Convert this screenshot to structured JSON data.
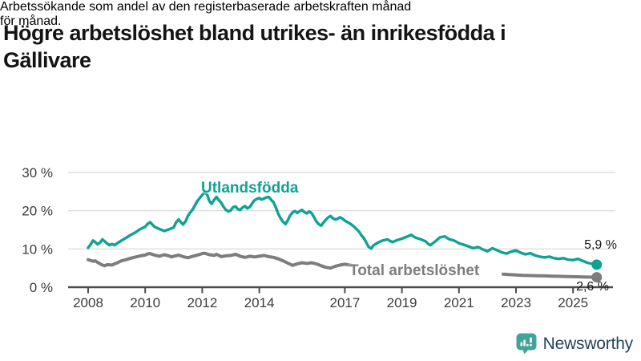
{
  "header": {
    "title_line1": "Högre arbetslöshet bland utrikes- än inrikesfödda i",
    "title_line2": "Gällivare",
    "subtitle_line1": "Arbetssökande som andel av den registerbaserade arbetskraften månad",
    "subtitle_line2": "för månad."
  },
  "footer": {
    "brand_name": "Newsworthy"
  },
  "colors": {
    "teal": "#0FA294",
    "gray": "#7D7D7D",
    "grid": "#DEDEDE",
    "axis": "#4D4D4D",
    "tick_text": "#3B3B3B",
    "end_label_text": "#191919",
    "brand_text": "#24455E",
    "brand_icon": "#42A39A"
  },
  "chart_data": {
    "type": "line",
    "title": "Högre arbetslöshet bland utrikes- än inrikesfödda i Gällivare",
    "subtitle": "Arbetssökande som andel av den registerbaserade arbetskraften månad för månad.",
    "unit": "%",
    "legend_position": "inline-labels",
    "x_axis": {
      "ticks": [
        2008,
        2010,
        2012,
        2014,
        2017,
        2019,
        2021,
        2023,
        2025
      ],
      "tick_labels": [
        "2008",
        "2010",
        "2012",
        "2014",
        "2017",
        "2019",
        "2021",
        "2023",
        "2025"
      ],
      "domain": [
        2008,
        2025.9
      ]
    },
    "y_axis": {
      "ticks": [
        0,
        10,
        20,
        30
      ],
      "tick_labels": [
        "0 %",
        "10 %",
        "20 %",
        "30 %"
      ],
      "domain": [
        0,
        30
      ],
      "grid": true
    },
    "series": [
      {
        "name": "Utlandsfödda",
        "color": "#0FA294",
        "end_label": "5,9 %",
        "end_value": 5.9,
        "segments": [
          [
            [
              2008.0,
              10.3
            ],
            [
              2008.08,
              11.1
            ],
            [
              2008.17,
              12.2
            ],
            [
              2008.25,
              11.8
            ],
            [
              2008.33,
              11.2
            ],
            [
              2008.42,
              11.7
            ],
            [
              2008.5,
              12.5
            ],
            [
              2008.58,
              12.0
            ],
            [
              2008.67,
              11.4
            ],
            [
              2008.75,
              11.0
            ],
            [
              2008.83,
              11.3
            ],
            [
              2008.92,
              11.0
            ],
            [
              2009.0,
              11.4
            ],
            [
              2009.17,
              12.2
            ],
            [
              2009.33,
              12.9
            ],
            [
              2009.5,
              13.7
            ],
            [
              2009.67,
              14.4
            ],
            [
              2009.83,
              15.2
            ],
            [
              2010.0,
              15.8
            ],
            [
              2010.08,
              16.5
            ],
            [
              2010.17,
              17.0
            ],
            [
              2010.25,
              16.4
            ],
            [
              2010.33,
              15.8
            ],
            [
              2010.5,
              15.2
            ],
            [
              2010.67,
              14.7
            ],
            [
              2010.83,
              15.1
            ],
            [
              2011.0,
              15.6
            ],
            [
              2011.08,
              16.9
            ],
            [
              2011.17,
              17.7
            ],
            [
              2011.25,
              17.0
            ],
            [
              2011.33,
              16.4
            ],
            [
              2011.42,
              17.3
            ],
            [
              2011.5,
              18.7
            ],
            [
              2011.58,
              19.5
            ],
            [
              2011.67,
              20.4
            ],
            [
              2011.75,
              21.5
            ],
            [
              2011.83,
              22.5
            ],
            [
              2011.92,
              23.4
            ],
            [
              2012.0,
              24.1
            ],
            [
              2012.08,
              24.8
            ],
            [
              2012.17,
              24.2
            ],
            [
              2012.25,
              22.5
            ],
            [
              2012.33,
              21.8
            ],
            [
              2012.42,
              22.9
            ],
            [
              2012.5,
              23.6
            ],
            [
              2012.58,
              22.8
            ],
            [
              2012.67,
              22.0
            ],
            [
              2012.75,
              21.0
            ],
            [
              2012.83,
              20.2
            ],
            [
              2012.92,
              19.8
            ],
            [
              2013.0,
              20.1
            ],
            [
              2013.08,
              20.9
            ],
            [
              2013.17,
              21.1
            ],
            [
              2013.25,
              20.4
            ],
            [
              2013.33,
              20.2
            ],
            [
              2013.42,
              20.9
            ],
            [
              2013.5,
              21.2
            ],
            [
              2013.58,
              20.6
            ],
            [
              2013.67,
              21.0
            ],
            [
              2013.75,
              21.9
            ],
            [
              2013.83,
              22.7
            ],
            [
              2013.92,
              23.1
            ],
            [
              2014.0,
              23.3
            ],
            [
              2014.08,
              22.9
            ],
            [
              2014.17,
              23.2
            ],
            [
              2014.25,
              23.5
            ],
            [
              2014.33,
              23.6
            ],
            [
              2014.42,
              22.8
            ],
            [
              2014.5,
              22.2
            ],
            [
              2014.58,
              20.9
            ],
            [
              2014.67,
              19.1
            ],
            [
              2014.75,
              18.0
            ],
            [
              2014.83,
              17.1
            ],
            [
              2014.92,
              16.5
            ],
            [
              2015.0,
              17.5
            ],
            [
              2015.08,
              18.7
            ],
            [
              2015.17,
              19.6
            ],
            [
              2015.25,
              19.9
            ],
            [
              2015.33,
              19.4
            ],
            [
              2015.42,
              19.9
            ],
            [
              2015.5,
              20.2
            ],
            [
              2015.58,
              19.6
            ],
            [
              2015.67,
              19.3
            ],
            [
              2015.75,
              19.8
            ],
            [
              2015.83,
              19.4
            ],
            [
              2015.92,
              18.3
            ],
            [
              2016.0,
              17.2
            ],
            [
              2016.08,
              16.5
            ],
            [
              2016.17,
              16.1
            ],
            [
              2016.25,
              16.9
            ],
            [
              2016.33,
              17.6
            ],
            [
              2016.42,
              18.3
            ],
            [
              2016.5,
              18.6
            ],
            [
              2016.58,
              18.0
            ],
            [
              2016.67,
              17.7
            ],
            [
              2016.75,
              17.9
            ],
            [
              2016.83,
              18.3
            ],
            [
              2016.92,
              17.9
            ],
            [
              2017.0,
              17.4
            ],
            [
              2017.17,
              16.7
            ],
            [
              2017.33,
              15.8
            ],
            [
              2017.5,
              14.5
            ],
            [
              2017.58,
              13.6
            ],
            [
              2017.67,
              12.8
            ],
            [
              2017.75,
              11.7
            ],
            [
              2017.83,
              10.6
            ],
            [
              2017.92,
              10.1
            ],
            [
              2018.0,
              10.9
            ],
            [
              2018.17,
              11.7
            ],
            [
              2018.33,
              12.2
            ],
            [
              2018.5,
              12.5
            ],
            [
              2018.58,
              12.1
            ],
            [
              2018.67,
              11.8
            ],
            [
              2018.83,
              12.3
            ],
            [
              2019.0,
              12.7
            ],
            [
              2019.17,
              13.2
            ],
            [
              2019.33,
              13.7
            ],
            [
              2019.42,
              13.2
            ],
            [
              2019.5,
              12.9
            ],
            [
              2019.67,
              12.5
            ],
            [
              2019.83,
              12.0
            ],
            [
              2019.92,
              11.3
            ],
            [
              2020.0,
              11.0
            ],
            [
              2020.17,
              12.0
            ],
            [
              2020.33,
              13.0
            ],
            [
              2020.5,
              13.3
            ],
            [
              2020.58,
              12.9
            ],
            [
              2020.67,
              12.5
            ],
            [
              2020.83,
              12.2
            ],
            [
              2021.0,
              11.5
            ],
            [
              2021.17,
              11.1
            ],
            [
              2021.33,
              10.7
            ],
            [
              2021.5,
              10.2
            ],
            [
              2021.67,
              10.5
            ],
            [
              2021.83,
              9.9
            ],
            [
              2022.0,
              9.4
            ],
            [
              2022.17,
              10.2
            ],
            [
              2022.33,
              9.7
            ],
            [
              2022.5,
              9.1
            ],
            [
              2022.67,
              8.8
            ],
            [
              2022.83,
              9.3
            ],
            [
              2023.0,
              9.6
            ],
            [
              2023.17,
              9.0
            ],
            [
              2023.33,
              8.6
            ],
            [
              2023.5,
              8.9
            ],
            [
              2023.67,
              8.3
            ],
            [
              2023.83,
              8.0
            ],
            [
              2024.0,
              7.8
            ],
            [
              2024.17,
              8.0
            ],
            [
              2024.33,
              7.6
            ],
            [
              2024.5,
              7.4
            ],
            [
              2024.67,
              7.6
            ],
            [
              2024.83,
              7.2
            ],
            [
              2025.0,
              7.1
            ],
            [
              2025.17,
              7.4
            ],
            [
              2025.33,
              6.9
            ],
            [
              2025.5,
              6.4
            ],
            [
              2025.67,
              6.1
            ],
            [
              2025.83,
              5.9
            ]
          ]
        ]
      },
      {
        "name": "Total arbetslöshet",
        "color": "#7D7D7D",
        "end_label": "2,6 %",
        "end_value": 2.6,
        "segments": [
          [
            [
              2008.0,
              7.2
            ],
            [
              2008.08,
              7.0
            ],
            [
              2008.17,
              6.8
            ],
            [
              2008.25,
              6.9
            ],
            [
              2008.33,
              6.5
            ],
            [
              2008.42,
              6.1
            ],
            [
              2008.5,
              5.8
            ],
            [
              2008.58,
              5.6
            ],
            [
              2008.67,
              5.9
            ],
            [
              2008.83,
              5.8
            ],
            [
              2008.92,
              6.1
            ],
            [
              2009.0,
              6.3
            ],
            [
              2009.17,
              6.9
            ],
            [
              2009.33,
              7.2
            ],
            [
              2009.5,
              7.6
            ],
            [
              2009.67,
              7.9
            ],
            [
              2009.83,
              8.2
            ],
            [
              2010.0,
              8.4
            ],
            [
              2010.08,
              8.7
            ],
            [
              2010.17,
              8.8
            ],
            [
              2010.33,
              8.4
            ],
            [
              2010.5,
              8.1
            ],
            [
              2010.67,
              8.5
            ],
            [
              2010.83,
              8.2
            ],
            [
              2010.92,
              7.9
            ],
            [
              2011.0,
              8.1
            ],
            [
              2011.17,
              8.4
            ],
            [
              2011.33,
              8.0
            ],
            [
              2011.5,
              7.7
            ],
            [
              2011.67,
              8.1
            ],
            [
              2011.83,
              8.4
            ],
            [
              2012.0,
              8.8
            ],
            [
              2012.08,
              8.9
            ],
            [
              2012.25,
              8.5
            ],
            [
              2012.42,
              8.3
            ],
            [
              2012.5,
              8.6
            ],
            [
              2012.67,
              8.0
            ],
            [
              2012.83,
              8.2
            ],
            [
              2013.0,
              8.3
            ],
            [
              2013.17,
              8.6
            ],
            [
              2013.33,
              8.1
            ],
            [
              2013.5,
              7.8
            ],
            [
              2013.67,
              8.1
            ],
            [
              2013.83,
              7.9
            ],
            [
              2014.0,
              8.1
            ],
            [
              2014.17,
              8.3
            ],
            [
              2014.33,
              8.0
            ],
            [
              2014.5,
              7.8
            ],
            [
              2014.67,
              7.4
            ],
            [
              2014.83,
              6.9
            ],
            [
              2015.0,
              6.3
            ],
            [
              2015.17,
              5.7
            ],
            [
              2015.33,
              6.1
            ],
            [
              2015.5,
              6.4
            ],
            [
              2015.67,
              6.2
            ],
            [
              2015.83,
              6.4
            ],
            [
              2016.0,
              6.1
            ],
            [
              2016.17,
              5.6
            ],
            [
              2016.33,
              5.2
            ],
            [
              2016.5,
              5.0
            ],
            [
              2016.67,
              5.5
            ],
            [
              2016.83,
              5.8
            ],
            [
              2017.0,
              6.0
            ],
            [
              2017.17,
              5.8
            ],
            [
              2017.33,
              5.6
            ]
          ],
          [
            [
              2022.55,
              3.4
            ],
            [
              2022.75,
              3.3
            ],
            [
              2023.0,
              3.2
            ],
            [
              2023.25,
              3.1
            ],
            [
              2023.5,
              3.05
            ],
            [
              2023.75,
              3.0
            ],
            [
              2024.0,
              2.95
            ],
            [
              2024.25,
              2.9
            ],
            [
              2024.5,
              2.85
            ],
            [
              2024.75,
              2.8
            ],
            [
              2025.0,
              2.75
            ],
            [
              2025.25,
              2.7
            ],
            [
              2025.5,
              2.65
            ],
            [
              2025.83,
              2.6
            ]
          ]
        ]
      }
    ]
  }
}
